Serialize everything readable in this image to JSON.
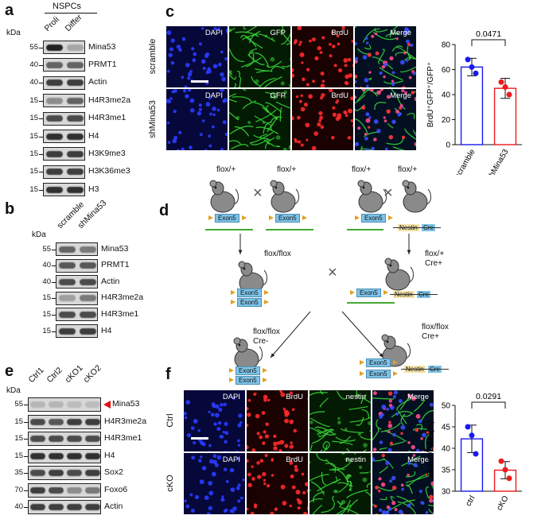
{
  "panels": {
    "a": {
      "label": "a",
      "group_label": "NSPCs",
      "lanes": [
        "Proli",
        "Differ"
      ],
      "kda_label": "kDa",
      "blots": [
        {
          "mw": "55",
          "protein": "Mina53",
          "bands": [
            0.95,
            0.35
          ]
        },
        {
          "mw": "40",
          "protein": "PRMT1",
          "bands": [
            0.7,
            0.7
          ]
        },
        {
          "mw": "40",
          "protein": "Actin",
          "bands": [
            0.85,
            0.85
          ]
        },
        {
          "mw": "15",
          "protein": "H4R3me2a",
          "bands": [
            0.5,
            0.7
          ]
        },
        {
          "mw": "15",
          "protein": "H4R3me1",
          "bands": [
            0.8,
            0.8
          ]
        },
        {
          "mw": "15",
          "protein": "H4",
          "bands": [
            0.9,
            0.9
          ]
        },
        {
          "mw": "15",
          "protein": "H3K9me3",
          "bands": [
            0.85,
            0.85
          ]
        },
        {
          "mw": "15",
          "protein": "H3K36me3",
          "bands": [
            0.85,
            0.85
          ]
        },
        {
          "mw": "15",
          "protein": "H3",
          "bands": [
            0.9,
            0.9
          ]
        }
      ]
    },
    "b": {
      "label": "b",
      "lanes": [
        "scramble",
        "shMina53"
      ],
      "kda_label": "kDa",
      "blots": [
        {
          "mw": "55",
          "protein": "Mina53",
          "bands": [
            0.7,
            0.6
          ]
        },
        {
          "mw": "40",
          "protein": "PRMT1",
          "bands": [
            0.75,
            0.75
          ]
        },
        {
          "mw": "40",
          "protein": "Actin",
          "bands": [
            0.8,
            0.8
          ]
        },
        {
          "mw": "15",
          "protein": "H4R3me2a",
          "bands": [
            0.4,
            0.6
          ]
        },
        {
          "mw": "15",
          "protein": "H4R3me1",
          "bands": [
            0.8,
            0.8
          ]
        },
        {
          "mw": "15",
          "protein": "H4",
          "bands": [
            0.85,
            0.85
          ]
        }
      ]
    },
    "c": {
      "label": "c",
      "rows": [
        "scramble",
        "shMina53"
      ],
      "channels": [
        "DAPI",
        "GFP",
        "BrdU",
        "Merge"
      ],
      "chart_data": {
        "type": "bar",
        "categories": [
          "scramble",
          "shMina53"
        ],
        "values": [
          62,
          45
        ],
        "errors": [
          7,
          8
        ],
        "points": [
          [
            68,
            62,
            57
          ],
          [
            50,
            46,
            40
          ]
        ],
        "ylabel": "BrdU⁺GFP⁺/GFP⁺",
        "ylim": [
          0,
          80
        ],
        "yticks": [
          0,
          20,
          40,
          60,
          80
        ],
        "pvalue": "0.0471",
        "colors": [
          "#1a1aee",
          "#ee1a1a"
        ]
      }
    },
    "d": {
      "label": "d",
      "genotypes": {
        "p1": "flox/+",
        "p2": "flox/+",
        "p3": "flox/+",
        "p4": "flox/+",
        "f1a": "flox/flox",
        "f1b": "flox/+",
        "f1b2": "Cre+",
        "f2a": "flox/flox",
        "f2a2": "Cre-",
        "f2b": "flox/flox",
        "f2b2": "Cre+"
      },
      "exon_label": "Exon5",
      "nestin_label": "Nestin",
      "cre_label": "Cre",
      "cross_symbol": "×"
    },
    "e": {
      "label": "e",
      "lanes": [
        "Ctrl1",
        "Ctrl2",
        "cKO1",
        "cKO2"
      ],
      "kda_label": "kDa",
      "blots": [
        {
          "mw": "55",
          "protein": "Mina53",
          "bands": [
            0.25,
            0.25,
            0.2,
            0.2
          ],
          "arrow": true
        },
        {
          "mw": "15",
          "protein": "H4R3me2a",
          "bands": [
            0.8,
            0.75,
            0.85,
            0.85
          ]
        },
        {
          "mw": "15",
          "protein": "H4R3me1",
          "bands": [
            0.8,
            0.8,
            0.8,
            0.8
          ]
        },
        {
          "mw": "15",
          "protein": "H4",
          "bands": [
            0.9,
            0.9,
            0.9,
            0.9
          ]
        },
        {
          "mw": "35",
          "protein": "Sox2",
          "bands": [
            0.8,
            0.85,
            0.8,
            0.85
          ]
        },
        {
          "mw": "70",
          "protein": "Foxo6",
          "bands": [
            0.85,
            0.8,
            0.5,
            0.6
          ]
        },
        {
          "mw": "40",
          "protein": "Actin",
          "bands": [
            0.85,
            0.85,
            0.85,
            0.85
          ]
        }
      ]
    },
    "f": {
      "label": "f",
      "rows": [
        "Ctrl",
        "cKO"
      ],
      "channels": [
        "DAPI",
        "BrdU",
        "nestin",
        "Merge"
      ],
      "chart_data": {
        "type": "bar",
        "categories": [
          "ctrl",
          "cKO"
        ],
        "values": [
          42.2,
          34.9
        ],
        "errors": [
          3.2,
          2.0
        ],
        "points": [
          [
            45,
            43,
            38.7
          ],
          [
            37,
            35,
            33
          ]
        ],
        "ylabel": "BrdU⁺/DAPI(%)",
        "ylim": [
          30,
          50
        ],
        "yticks": [
          30,
          35,
          40,
          45,
          50
        ],
        "pvalue": "0.0291",
        "colors": [
          "#1a1aee",
          "#ee1a1a"
        ]
      }
    }
  }
}
